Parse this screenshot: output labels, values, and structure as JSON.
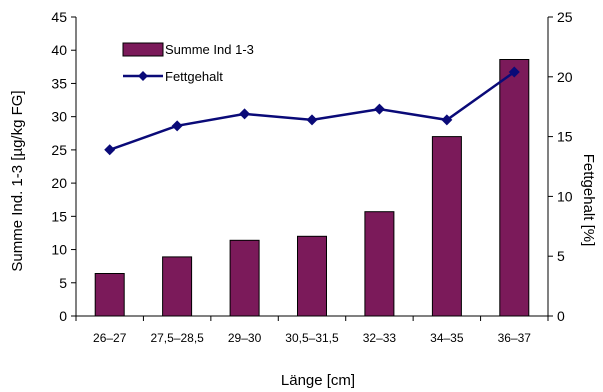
{
  "chart_data": {
    "type": "bar+line",
    "categories": [
      "26–27",
      "27,5–28,5",
      "29–30",
      "30,5–31,5",
      "32–33",
      "34–35",
      "36–37"
    ],
    "series": [
      {
        "name": "Summe Ind 1-3",
        "kind": "bar",
        "axis": "left",
        "color": "#7B1A5A",
        "values": [
          6.4,
          8.9,
          11.4,
          12.0,
          15.7,
          27.0,
          38.6
        ]
      },
      {
        "name": "Fettgehalt",
        "kind": "line",
        "axis": "right",
        "color": "#0A0A78",
        "marker": "diamond",
        "values": [
          13.9,
          15.9,
          16.9,
          16.4,
          17.3,
          16.4,
          20.4
        ]
      }
    ],
    "xlabel": "Länge [cm]",
    "ylabel_left": "Summe Ind. 1-3 [µg/kg FG]",
    "ylabel_right": "Fettgehalt  [%]",
    "ylim_left": [
      0,
      45
    ],
    "yticks_left": [
      0,
      5,
      10,
      15,
      20,
      25,
      30,
      35,
      40,
      45
    ],
    "ylim_right": [
      0,
      25
    ],
    "yticks_right": [
      0,
      5,
      10,
      15,
      20,
      25
    ],
    "grid": false,
    "legend_position": "top-left"
  }
}
